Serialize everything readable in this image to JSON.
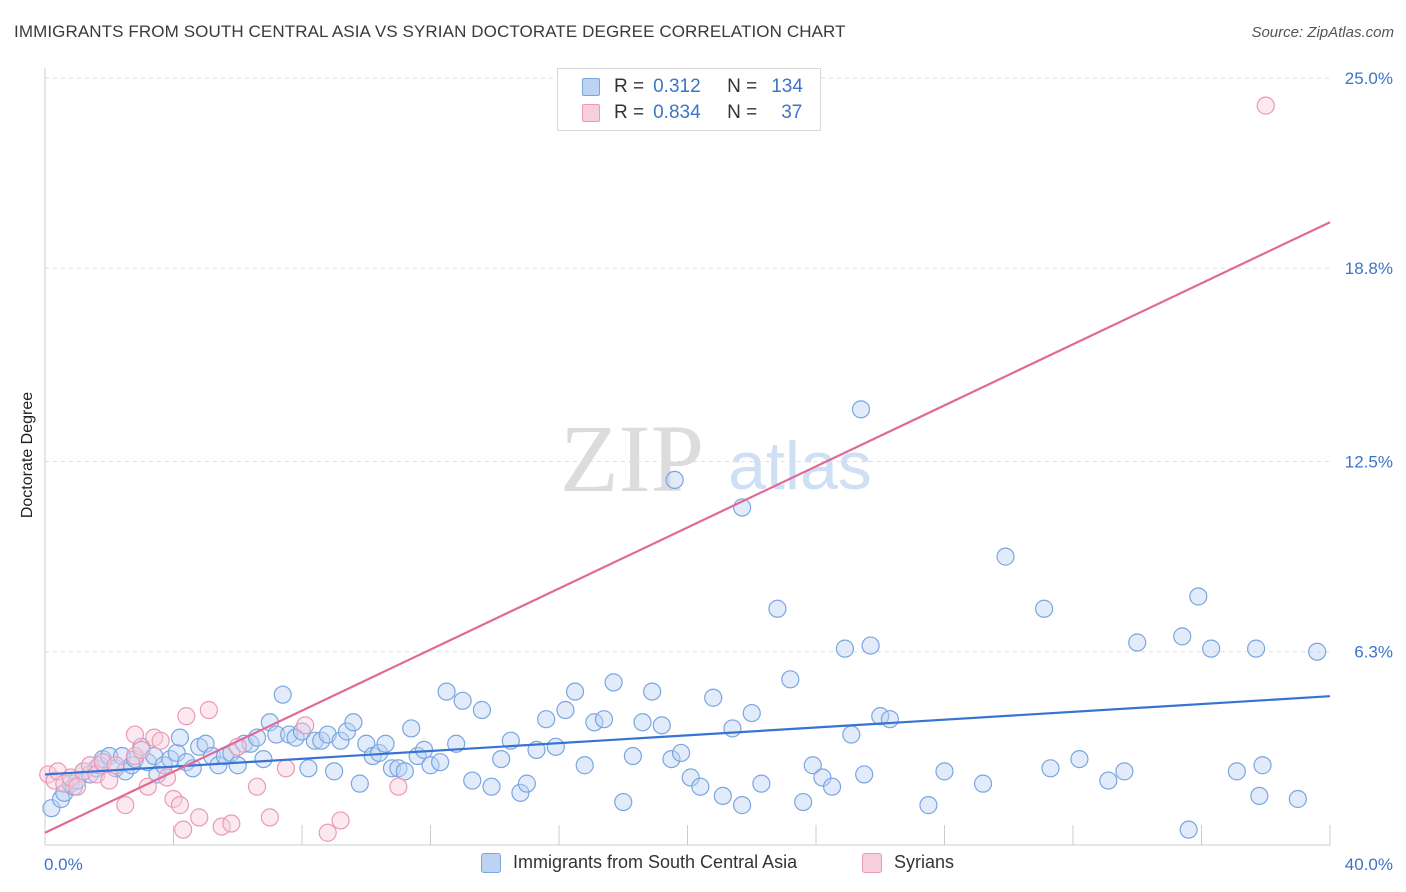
{
  "title": "IMMIGRANTS FROM SOUTH CENTRAL ASIA VS SYRIAN DOCTORATE DEGREE CORRELATION CHART",
  "source": "Source: ZipAtlas.com",
  "watermark": {
    "zip": "ZIP",
    "atlas": "atlas"
  },
  "legend": {
    "r_label": "R =",
    "n_label": "N =",
    "series": [
      {
        "r": "0.312",
        "n": "134"
      },
      {
        "r": "0.834",
        "n": "37"
      }
    ]
  },
  "bottom_legend": [
    "Immigrants from South Central Asia",
    "Syrians"
  ],
  "colors": {
    "blue": "#7aa6e0",
    "blue_fill": "#bcd3f3",
    "pink": "#eb9ab6",
    "pink_fill": "#f7cfdc",
    "blue_line": "#3773d4",
    "pink_line": "#e06a97",
    "tick_text": "#3b74c9"
  },
  "chart_data": {
    "type": "scatter",
    "xlabel": "",
    "ylabel": "Doctorate Degree",
    "xlim": [
      0,
      40
    ],
    "ylim": [
      0,
      25
    ],
    "x_tick_labels": [
      "0.0%",
      "40.0%"
    ],
    "y_ticks": [
      6.3,
      12.5,
      18.8,
      25.0
    ],
    "y_tick_labels": [
      "6.3%",
      "12.5%",
      "18.8%",
      "25.0%"
    ],
    "grid": true,
    "series": [
      {
        "name": "Immigrants from South Central Asia",
        "color": "#7aa6e0",
        "trend": {
          "x": [
            0,
            40
          ],
          "y": [
            2.3,
            4.85
          ]
        },
        "points": [
          [
            0.2,
            1.2
          ],
          [
            0.5,
            1.5
          ],
          [
            0.6,
            1.7
          ],
          [
            0.8,
            2.0
          ],
          [
            0.9,
            1.9
          ],
          [
            1.0,
            2.1
          ],
          [
            1.2,
            2.4
          ],
          [
            1.4,
            2.3
          ],
          [
            1.6,
            2.5
          ],
          [
            1.7,
            2.6
          ],
          [
            1.8,
            2.8
          ],
          [
            2.0,
            2.9
          ],
          [
            2.2,
            2.5
          ],
          [
            2.4,
            2.9
          ],
          [
            2.5,
            2.4
          ],
          [
            2.7,
            2.6
          ],
          [
            2.8,
            2.8
          ],
          [
            3.0,
            3.2
          ],
          [
            3.2,
            2.7
          ],
          [
            3.4,
            2.9
          ],
          [
            3.5,
            2.3
          ],
          [
            3.7,
            2.6
          ],
          [
            3.9,
            2.8
          ],
          [
            4.1,
            3.0
          ],
          [
            4.2,
            3.5
          ],
          [
            4.4,
            2.7
          ],
          [
            4.6,
            2.5
          ],
          [
            4.8,
            3.2
          ],
          [
            5.0,
            3.3
          ],
          [
            5.2,
            2.9
          ],
          [
            5.4,
            2.6
          ],
          [
            5.6,
            2.9
          ],
          [
            5.8,
            3.0
          ],
          [
            6.0,
            2.6
          ],
          [
            6.2,
            3.3
          ],
          [
            6.4,
            3.3
          ],
          [
            6.6,
            3.5
          ],
          [
            6.8,
            2.8
          ],
          [
            7.0,
            4.0
          ],
          [
            7.2,
            3.6
          ],
          [
            7.4,
            4.9
          ],
          [
            7.6,
            3.6
          ],
          [
            7.8,
            3.5
          ],
          [
            8.0,
            3.7
          ],
          [
            8.2,
            2.5
          ],
          [
            8.4,
            3.4
          ],
          [
            8.6,
            3.4
          ],
          [
            8.8,
            3.6
          ],
          [
            9.0,
            2.4
          ],
          [
            9.2,
            3.4
          ],
          [
            9.4,
            3.7
          ],
          [
            9.6,
            4.0
          ],
          [
            9.8,
            2.0
          ],
          [
            10.0,
            3.3
          ],
          [
            10.2,
            2.9
          ],
          [
            10.4,
            3.0
          ],
          [
            10.6,
            3.3
          ],
          [
            10.8,
            2.5
          ],
          [
            11.0,
            2.5
          ],
          [
            11.2,
            2.4
          ],
          [
            11.4,
            3.8
          ],
          [
            11.6,
            2.9
          ],
          [
            11.8,
            3.1
          ],
          [
            12.0,
            2.6
          ],
          [
            12.3,
            2.7
          ],
          [
            12.5,
            5.0
          ],
          [
            12.8,
            3.3
          ],
          [
            13.0,
            4.7
          ],
          [
            13.3,
            2.1
          ],
          [
            13.6,
            4.4
          ],
          [
            13.9,
            1.9
          ],
          [
            14.2,
            2.8
          ],
          [
            14.5,
            3.4
          ],
          [
            14.8,
            1.7
          ],
          [
            15.0,
            2.0
          ],
          [
            15.3,
            3.1
          ],
          [
            15.6,
            4.1
          ],
          [
            15.9,
            3.2
          ],
          [
            16.2,
            4.4
          ],
          [
            16.5,
            5.0
          ],
          [
            16.8,
            2.6
          ],
          [
            17.1,
            4.0
          ],
          [
            17.4,
            4.1
          ],
          [
            17.7,
            5.3
          ],
          [
            18.0,
            1.4
          ],
          [
            18.3,
            2.9
          ],
          [
            18.6,
            4.0
          ],
          [
            18.9,
            5.0
          ],
          [
            19.2,
            3.9
          ],
          [
            19.5,
            2.8
          ],
          [
            19.8,
            3.0
          ],
          [
            20.1,
            2.2
          ],
          [
            20.4,
            1.9
          ],
          [
            20.8,
            4.8
          ],
          [
            21.1,
            1.6
          ],
          [
            21.4,
            3.8
          ],
          [
            21.7,
            1.3
          ],
          [
            22.0,
            4.3
          ],
          [
            22.3,
            2.0
          ],
          [
            22.8,
            7.7
          ],
          [
            23.2,
            5.4
          ],
          [
            23.6,
            1.4
          ],
          [
            23.9,
            2.6
          ],
          [
            24.2,
            2.2
          ],
          [
            24.5,
            1.9
          ],
          [
            24.9,
            6.4
          ],
          [
            25.1,
            3.6
          ],
          [
            25.5,
            2.3
          ],
          [
            25.7,
            6.5
          ],
          [
            26.0,
            4.2
          ],
          [
            26.3,
            4.1
          ],
          [
            27.5,
            1.3
          ],
          [
            28.0,
            2.4
          ],
          [
            29.2,
            2.0
          ],
          [
            29.9,
            9.4
          ],
          [
            31.1,
            7.7
          ],
          [
            31.3,
            2.5
          ],
          [
            32.2,
            2.8
          ],
          [
            33.1,
            2.1
          ],
          [
            33.6,
            2.4
          ],
          [
            34.0,
            6.6
          ],
          [
            35.4,
            6.8
          ],
          [
            35.6,
            0.5
          ],
          [
            35.9,
            8.1
          ],
          [
            36.3,
            6.4
          ],
          [
            37.1,
            2.4
          ],
          [
            37.7,
            6.4
          ],
          [
            37.8,
            1.6
          ],
          [
            37.9,
            2.6
          ],
          [
            39.0,
            1.5
          ],
          [
            39.6,
            6.3
          ],
          [
            25.4,
            14.2
          ],
          [
            19.6,
            11.9
          ],
          [
            21.7,
            11.0
          ]
        ]
      },
      {
        "name": "Syrians",
        "color": "#eb9ab6",
        "trend": {
          "x": [
            0,
            40
          ],
          "y": [
            0.4,
            20.3
          ]
        },
        "points": [
          [
            0.1,
            2.3
          ],
          [
            0.3,
            2.1
          ],
          [
            0.4,
            2.4
          ],
          [
            0.6,
            2.0
          ],
          [
            0.8,
            2.2
          ],
          [
            1.0,
            1.9
          ],
          [
            1.2,
            2.4
          ],
          [
            1.4,
            2.6
          ],
          [
            1.6,
            2.3
          ],
          [
            1.8,
            2.7
          ],
          [
            2.0,
            2.1
          ],
          [
            2.2,
            2.6
          ],
          [
            2.5,
            1.3
          ],
          [
            2.8,
            2.9
          ],
          [
            2.8,
            3.6
          ],
          [
            3.0,
            3.1
          ],
          [
            3.2,
            1.9
          ],
          [
            3.4,
            3.5
          ],
          [
            3.6,
            3.4
          ],
          [
            3.8,
            2.2
          ],
          [
            4.0,
            1.5
          ],
          [
            4.2,
            1.3
          ],
          [
            4.3,
            0.5
          ],
          [
            4.4,
            4.2
          ],
          [
            4.8,
            0.9
          ],
          [
            5.1,
            4.4
          ],
          [
            5.5,
            0.6
          ],
          [
            5.8,
            0.7
          ],
          [
            6.0,
            3.2
          ],
          [
            6.6,
            1.9
          ],
          [
            7.0,
            0.9
          ],
          [
            7.5,
            2.5
          ],
          [
            8.1,
            3.9
          ],
          [
            8.8,
            0.4
          ],
          [
            9.2,
            0.8
          ],
          [
            11.0,
            1.9
          ],
          [
            38.0,
            24.1
          ]
        ]
      }
    ]
  }
}
